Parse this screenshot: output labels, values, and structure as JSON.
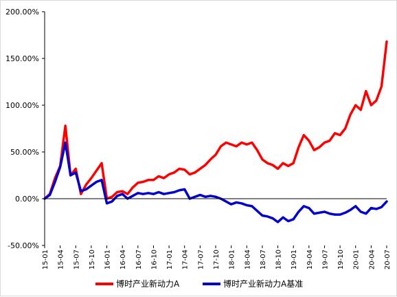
{
  "chart_data": {
    "type": "line",
    "title": "",
    "xlabel": "",
    "ylabel": "",
    "x_tick_labels": [
      "15-01",
      "15-04",
      "15-07",
      "15-10",
      "16-01",
      "16-04",
      "16-07",
      "16-10",
      "17-01",
      "17-04",
      "17-07",
      "17-10",
      "18-01",
      "18-04",
      "18-07",
      "18-10",
      "19-01",
      "19-04",
      "19-07",
      "19-10",
      "20-01",
      "20-04",
      "20-07"
    ],
    "y_ticks": [
      -50,
      0,
      50,
      100,
      150,
      200
    ],
    "y_tick_labels": [
      "-50.00%",
      "0.00%",
      "50.00%",
      "100.00%",
      "150.00%",
      "200.00%"
    ],
    "ylim": [
      -50,
      200
    ],
    "grid": false,
    "legend_position": "bottom",
    "series": [
      {
        "name": "博时产业新动力A",
        "color": "#ff0000",
        "points": [
          [
            "15-01",
            0
          ],
          [
            "15-02",
            5
          ],
          [
            "15-03",
            22
          ],
          [
            "15-04",
            35
          ],
          [
            "15-05",
            78
          ],
          [
            "15-06",
            25
          ],
          [
            "15-07",
            32
          ],
          [
            "15-08",
            5
          ],
          [
            "15-09",
            15
          ],
          [
            "15-10",
            22
          ],
          [
            "15-11",
            30
          ],
          [
            "15-12",
            38
          ],
          [
            "16-01",
            0
          ],
          [
            "16-02",
            2
          ],
          [
            "16-03",
            7
          ],
          [
            "16-04",
            8
          ],
          [
            "16-05",
            5
          ],
          [
            "16-06",
            12
          ],
          [
            "16-07",
            17
          ],
          [
            "16-08",
            18
          ],
          [
            "16-09",
            20
          ],
          [
            "16-10",
            20
          ],
          [
            "16-11",
            24
          ],
          [
            "16-12",
            22
          ],
          [
            "17-01",
            26
          ],
          [
            "17-02",
            28
          ],
          [
            "17-03",
            32
          ],
          [
            "17-04",
            31
          ],
          [
            "17-05",
            26
          ],
          [
            "17-06",
            28
          ],
          [
            "17-07",
            32
          ],
          [
            "17-08",
            36
          ],
          [
            "17-09",
            42
          ],
          [
            "17-10",
            47
          ],
          [
            "17-11",
            56
          ],
          [
            "17-12",
            60
          ],
          [
            "18-01",
            58
          ],
          [
            "18-02",
            56
          ],
          [
            "18-03",
            60
          ],
          [
            "18-04",
            58
          ],
          [
            "18-05",
            60
          ],
          [
            "18-06",
            52
          ],
          [
            "18-07",
            42
          ],
          [
            "18-08",
            38
          ],
          [
            "18-09",
            36
          ],
          [
            "18-10",
            32
          ],
          [
            "18-11",
            38
          ],
          [
            "18-12",
            35
          ],
          [
            "19-01",
            38
          ],
          [
            "19-02",
            55
          ],
          [
            "19-03",
            68
          ],
          [
            "19-04",
            62
          ],
          [
            "19-05",
            52
          ],
          [
            "19-06",
            55
          ],
          [
            "19-07",
            60
          ],
          [
            "19-08",
            62
          ],
          [
            "19-09",
            70
          ],
          [
            "19-10",
            68
          ],
          [
            "19-11",
            75
          ],
          [
            "19-12",
            90
          ],
          [
            "20-01",
            100
          ],
          [
            "20-02",
            95
          ],
          [
            "20-03",
            115
          ],
          [
            "20-04",
            100
          ],
          [
            "20-05",
            105
          ],
          [
            "20-06",
            120
          ],
          [
            "20-07",
            168
          ]
        ]
      },
      {
        "name": "博时产业新动力A基准",
        "color": "#0000cc",
        "points": [
          [
            "15-01",
            0
          ],
          [
            "15-02",
            4
          ],
          [
            "15-03",
            18
          ],
          [
            "15-04",
            34
          ],
          [
            "15-05",
            60
          ],
          [
            "15-06",
            25
          ],
          [
            "15-07",
            28
          ],
          [
            "15-08",
            8
          ],
          [
            "15-09",
            10
          ],
          [
            "15-10",
            14
          ],
          [
            "15-11",
            18
          ],
          [
            "15-12",
            20
          ],
          [
            "16-01",
            -5
          ],
          [
            "16-02",
            -3
          ],
          [
            "16-03",
            3
          ],
          [
            "16-04",
            5
          ],
          [
            "16-05",
            0
          ],
          [
            "16-06",
            3
          ],
          [
            "16-07",
            6
          ],
          [
            "16-08",
            5
          ],
          [
            "16-09",
            6
          ],
          [
            "16-10",
            5
          ],
          [
            "16-11",
            7
          ],
          [
            "16-12",
            5
          ],
          [
            "17-01",
            6
          ],
          [
            "17-02",
            7
          ],
          [
            "17-03",
            9
          ],
          [
            "17-04",
            10
          ],
          [
            "17-05",
            0
          ],
          [
            "17-06",
            2
          ],
          [
            "17-07",
            4
          ],
          [
            "17-08",
            2
          ],
          [
            "17-09",
            3
          ],
          [
            "17-10",
            2
          ],
          [
            "17-11",
            0
          ],
          [
            "17-12",
            -3
          ],
          [
            "18-01",
            -6
          ],
          [
            "18-02",
            -4
          ],
          [
            "18-03",
            -5
          ],
          [
            "18-04",
            -7
          ],
          [
            "18-05",
            -8
          ],
          [
            "18-06",
            -13
          ],
          [
            "18-07",
            -18
          ],
          [
            "18-08",
            -19
          ],
          [
            "18-09",
            -21
          ],
          [
            "18-10",
            -25
          ],
          [
            "18-11",
            -20
          ],
          [
            "18-12",
            -24
          ],
          [
            "19-01",
            -22
          ],
          [
            "19-02",
            -14
          ],
          [
            "19-03",
            -8
          ],
          [
            "19-04",
            -10
          ],
          [
            "19-05",
            -16
          ],
          [
            "19-06",
            -15
          ],
          [
            "19-07",
            -14
          ],
          [
            "19-08",
            -16
          ],
          [
            "19-09",
            -17
          ],
          [
            "19-10",
            -17
          ],
          [
            "19-11",
            -15
          ],
          [
            "19-12",
            -12
          ],
          [
            "20-01",
            -8
          ],
          [
            "20-02",
            -14
          ],
          [
            "20-03",
            -16
          ],
          [
            "20-04",
            -10
          ],
          [
            "20-05",
            -11
          ],
          [
            "20-06",
            -9
          ],
          [
            "20-07",
            -3
          ]
        ]
      }
    ]
  }
}
